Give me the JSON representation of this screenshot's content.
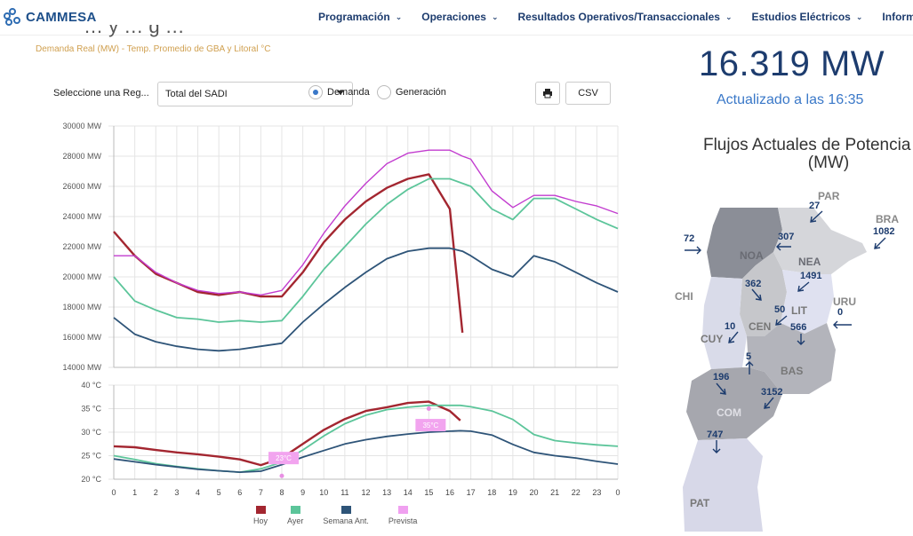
{
  "header": {
    "brand": "CAMMESA",
    "nav": [
      "Programación",
      "Operaciones",
      "Resultados Operativos/Transaccionales",
      "Estudios Eléctricos",
      "Informes y E"
    ]
  },
  "page": {
    "cut_title": "… y … g …",
    "subtitle": "Demanda Real (MW) - Temp. Promedio de GBA y Litoral °C"
  },
  "controls": {
    "region_label": "Seleccione una Reg...",
    "region_value": "Total del SADI",
    "radio_demand": "Demanda",
    "radio_generation": "Generación",
    "csv_label": "CSV"
  },
  "summary": {
    "current_value": "16.319 MW",
    "updated": "Actualizado a las 16:35"
  },
  "flows": {
    "title_line1": "Flujos Actuales de Potencia del S",
    "title_line2": "(MW)",
    "regions": [
      "NOA",
      "NEA",
      "CEN",
      "LIT",
      "CUY",
      "BAS",
      "COM",
      "PAT",
      "CHI",
      "PAR",
      "BRA",
      "URU"
    ],
    "values": [
      "72",
      "307",
      "27",
      "1082",
      "1491",
      "362",
      "50",
      "566",
      "0",
      "10",
      "5",
      "196",
      "3152",
      "747"
    ]
  },
  "chart_data": [
    {
      "type": "line",
      "ylabel_units": "MW",
      "ylim": [
        14000,
        30000
      ],
      "yticks": [
        "30000 MW",
        "28000 MW",
        "26000 MW",
        "24000 MW",
        "22000 MW",
        "20000 MW",
        "18000 MW",
        "16000 MW",
        "14000 MW"
      ],
      "x": [
        0,
        1,
        2,
        3,
        4,
        5,
        6,
        7,
        8,
        9,
        10,
        11,
        12,
        13,
        14,
        15,
        16,
        16.6,
        17,
        18,
        19,
        20,
        21,
        22,
        23,
        24
      ],
      "series": [
        {
          "name": "Hoy",
          "color": "#a32630",
          "values": [
            23000,
            21400,
            20200,
            19600,
            19000,
            18800,
            19000,
            18700,
            18700,
            20300,
            22300,
            23800,
            25000,
            25900,
            26500,
            26800,
            24500,
            16300,
            null,
            null,
            null,
            null,
            null,
            null,
            null,
            null
          ]
        },
        {
          "name": "Ayer",
          "color": "#5cc59a",
          "values": [
            20000,
            18400,
            17800,
            17300,
            17200,
            17000,
            17100,
            17000,
            17100,
            18700,
            20500,
            22000,
            23500,
            24800,
            25800,
            26500,
            26500,
            26200,
            26000,
            24500,
            23800,
            25200,
            25200,
            24500,
            23800,
            23200
          ]
        },
        {
          "name": "Semana Ant.",
          "color": "#2e5478",
          "values": [
            17300,
            16200,
            15700,
            15400,
            15200,
            15100,
            15200,
            15400,
            15600,
            17000,
            18200,
            19300,
            20300,
            21200,
            21700,
            21900,
            21900,
            21700,
            21400,
            20500,
            20000,
            21400,
            21000,
            20300,
            19600,
            19000
          ]
        },
        {
          "name": "Prevista",
          "color": "#c23ccf",
          "values": [
            21400,
            21400,
            20300,
            19600,
            19100,
            18900,
            19000,
            18800,
            19100,
            20800,
            22900,
            24700,
            26200,
            27500,
            28200,
            28400,
            28400,
            28000,
            27800,
            25700,
            24600,
            25400,
            25400,
            25000,
            24700,
            24200
          ]
        }
      ]
    },
    {
      "type": "line",
      "ylim": [
        20,
        40
      ],
      "yticks": [
        "40 °C",
        "35 °C",
        "30 °C",
        "25 °C",
        "20 °C"
      ],
      "xticks": [
        "0",
        "1",
        "2",
        "3",
        "4",
        "5",
        "6",
        "7",
        "8",
        "9",
        "10",
        "11",
        "12",
        "13",
        "14",
        "15",
        "16",
        "17",
        "18",
        "19",
        "20",
        "21",
        "22",
        "23",
        "0"
      ],
      "x": [
        0,
        1,
        2,
        3,
        4,
        5,
        6,
        7,
        8,
        9,
        10,
        11,
        12,
        13,
        14,
        15,
        16,
        16.5,
        17,
        18,
        19,
        20,
        21,
        22,
        23,
        24
      ],
      "series": [
        {
          "name": "Hoy",
          "color": "#a32630",
          "values": [
            27,
            26.8,
            26.2,
            25.7,
            25.3,
            24.8,
            24.2,
            23,
            24.5,
            27.5,
            30.5,
            32.8,
            34.5,
            35.3,
            36.2,
            36.5,
            34.5,
            32.5,
            null,
            null,
            null,
            null,
            null,
            null,
            null,
            null
          ]
        },
        {
          "name": "Ayer",
          "color": "#5cc59a",
          "values": [
            25,
            24.2,
            23.3,
            22.7,
            22.2,
            21.8,
            21.5,
            22.2,
            23.6,
            26.2,
            29.2,
            31.8,
            33.6,
            34.8,
            35.3,
            35.7,
            35.7,
            35.7,
            35.4,
            34.5,
            32.7,
            29.5,
            28.2,
            27.7,
            27.3,
            27
          ]
        },
        {
          "name": "Semana Ant.",
          "color": "#2e5478",
          "values": [
            24.3,
            23.7,
            23.1,
            22.6,
            22.1,
            21.8,
            21.5,
            21.7,
            23.1,
            24.7,
            26.1,
            27.5,
            28.4,
            29.1,
            29.6,
            30,
            30.2,
            30.3,
            30.2,
            29.4,
            27.4,
            25.7,
            25,
            24.5,
            23.8,
            23.2
          ]
        }
      ],
      "annotations": [
        {
          "text": "23°C",
          "x": 8
        },
        {
          "text": "35°C",
          "x": 15
        }
      ]
    }
  ],
  "legend": [
    "Hoy",
    "Ayer",
    "Semana Ant.",
    "Prevista"
  ],
  "legend_colors": [
    "#a32630",
    "#5cc59a",
    "#2e5478",
    "#f0a0f0"
  ]
}
